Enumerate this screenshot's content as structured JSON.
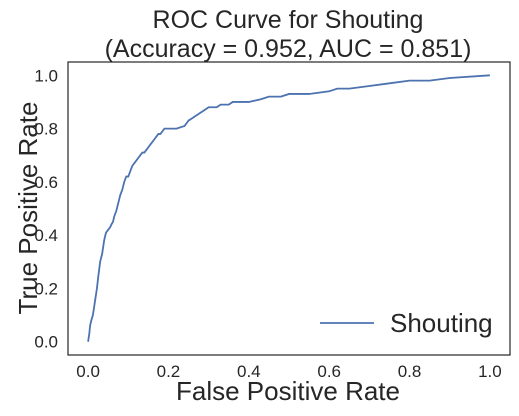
{
  "chart_data": {
    "type": "line",
    "title_line1": "ROC Curve for Shouting",
    "title_line2": "(Accuracy = 0.952, AUC = 0.851)",
    "xlabel": "False Positive Rate",
    "ylabel": "True Positive Rate",
    "xlim": [
      -0.05,
      1.05
    ],
    "ylim": [
      -0.05,
      1.05
    ],
    "xticks": [
      0.0,
      0.2,
      0.4,
      0.6,
      0.8,
      1.0
    ],
    "xtick_labels": [
      "0.0",
      "0.2",
      "0.4",
      "0.6",
      "0.8",
      "1.0"
    ],
    "yticks": [
      0.0,
      0.2,
      0.4,
      0.6,
      0.8,
      1.0
    ],
    "ytick_labels": [
      "0.0",
      "0.2",
      "0.4",
      "0.6",
      "0.8",
      "1.0"
    ],
    "grid": false,
    "legend_position": "bottom-right",
    "series": [
      {
        "name": "Shouting",
        "color": "#4c72b0",
        "x": [
          0.0,
          0.003,
          0.005,
          0.008,
          0.012,
          0.015,
          0.018,
          0.022,
          0.025,
          0.03,
          0.035,
          0.038,
          0.04,
          0.043,
          0.045,
          0.05,
          0.055,
          0.058,
          0.062,
          0.065,
          0.07,
          0.075,
          0.08,
          0.085,
          0.09,
          0.095,
          0.1,
          0.105,
          0.11,
          0.12,
          0.125,
          0.13,
          0.135,
          0.14,
          0.145,
          0.15,
          0.155,
          0.16,
          0.165,
          0.17,
          0.175,
          0.18,
          0.185,
          0.19,
          0.2,
          0.205,
          0.21,
          0.22,
          0.24,
          0.245,
          0.25,
          0.26,
          0.28,
          0.29,
          0.3,
          0.31,
          0.32,
          0.33,
          0.34,
          0.35,
          0.36,
          0.38,
          0.4,
          0.43,
          0.45,
          0.48,
          0.5,
          0.55,
          0.6,
          0.62,
          0.65,
          0.7,
          0.75,
          0.8,
          0.85,
          0.9,
          1.0
        ],
        "y": [
          0.0,
          0.03,
          0.06,
          0.08,
          0.1,
          0.13,
          0.16,
          0.2,
          0.24,
          0.3,
          0.33,
          0.36,
          0.38,
          0.4,
          0.41,
          0.42,
          0.43,
          0.44,
          0.45,
          0.47,
          0.49,
          0.52,
          0.55,
          0.57,
          0.6,
          0.62,
          0.62,
          0.64,
          0.66,
          0.68,
          0.69,
          0.7,
          0.71,
          0.71,
          0.72,
          0.73,
          0.74,
          0.75,
          0.76,
          0.77,
          0.78,
          0.78,
          0.79,
          0.8,
          0.8,
          0.8,
          0.8,
          0.8,
          0.81,
          0.82,
          0.83,
          0.84,
          0.86,
          0.87,
          0.88,
          0.88,
          0.88,
          0.89,
          0.89,
          0.89,
          0.9,
          0.9,
          0.9,
          0.91,
          0.92,
          0.92,
          0.93,
          0.93,
          0.94,
          0.95,
          0.95,
          0.96,
          0.97,
          0.98,
          0.98,
          0.99,
          1.0
        ]
      }
    ]
  }
}
